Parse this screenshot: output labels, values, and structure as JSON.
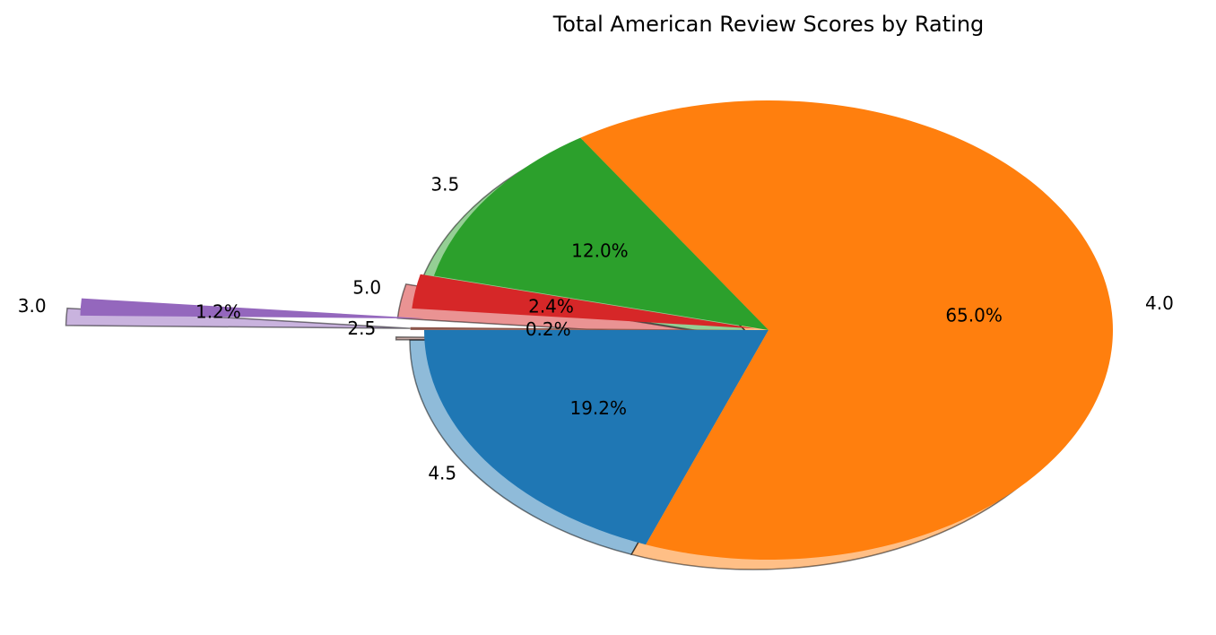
{
  "chart_data": {
    "type": "pie",
    "title": "Total American Review Scores by Rating",
    "start_angle_deg": 180,
    "direction": "counterclockwise",
    "shadow": true,
    "slices": [
      {
        "label": "4.5",
        "value": 19.2,
        "pct_label": "19.2%",
        "color": "#1f77b4",
        "explode": 0
      },
      {
        "label": "4.0",
        "value": 65.0,
        "pct_label": "65.0%",
        "color": "#ff7f0e",
        "explode": 0
      },
      {
        "label": "3.5",
        "value": 12.0,
        "pct_label": "12.0%",
        "color": "#2ca02c",
        "explode": 0
      },
      {
        "label": "5.0",
        "value": 2.4,
        "pct_label": "2.4%",
        "color": "#d62728",
        "explode": 0.04
      },
      {
        "label": "3.0",
        "value": 1.2,
        "pct_label": "1.2%",
        "color": "#9467bd",
        "explode": 1.0
      },
      {
        "label": "2.5",
        "value": 0.2,
        "pct_label": "0.2%",
        "color": "#8c564b",
        "explode": 0.04
      }
    ]
  }
}
